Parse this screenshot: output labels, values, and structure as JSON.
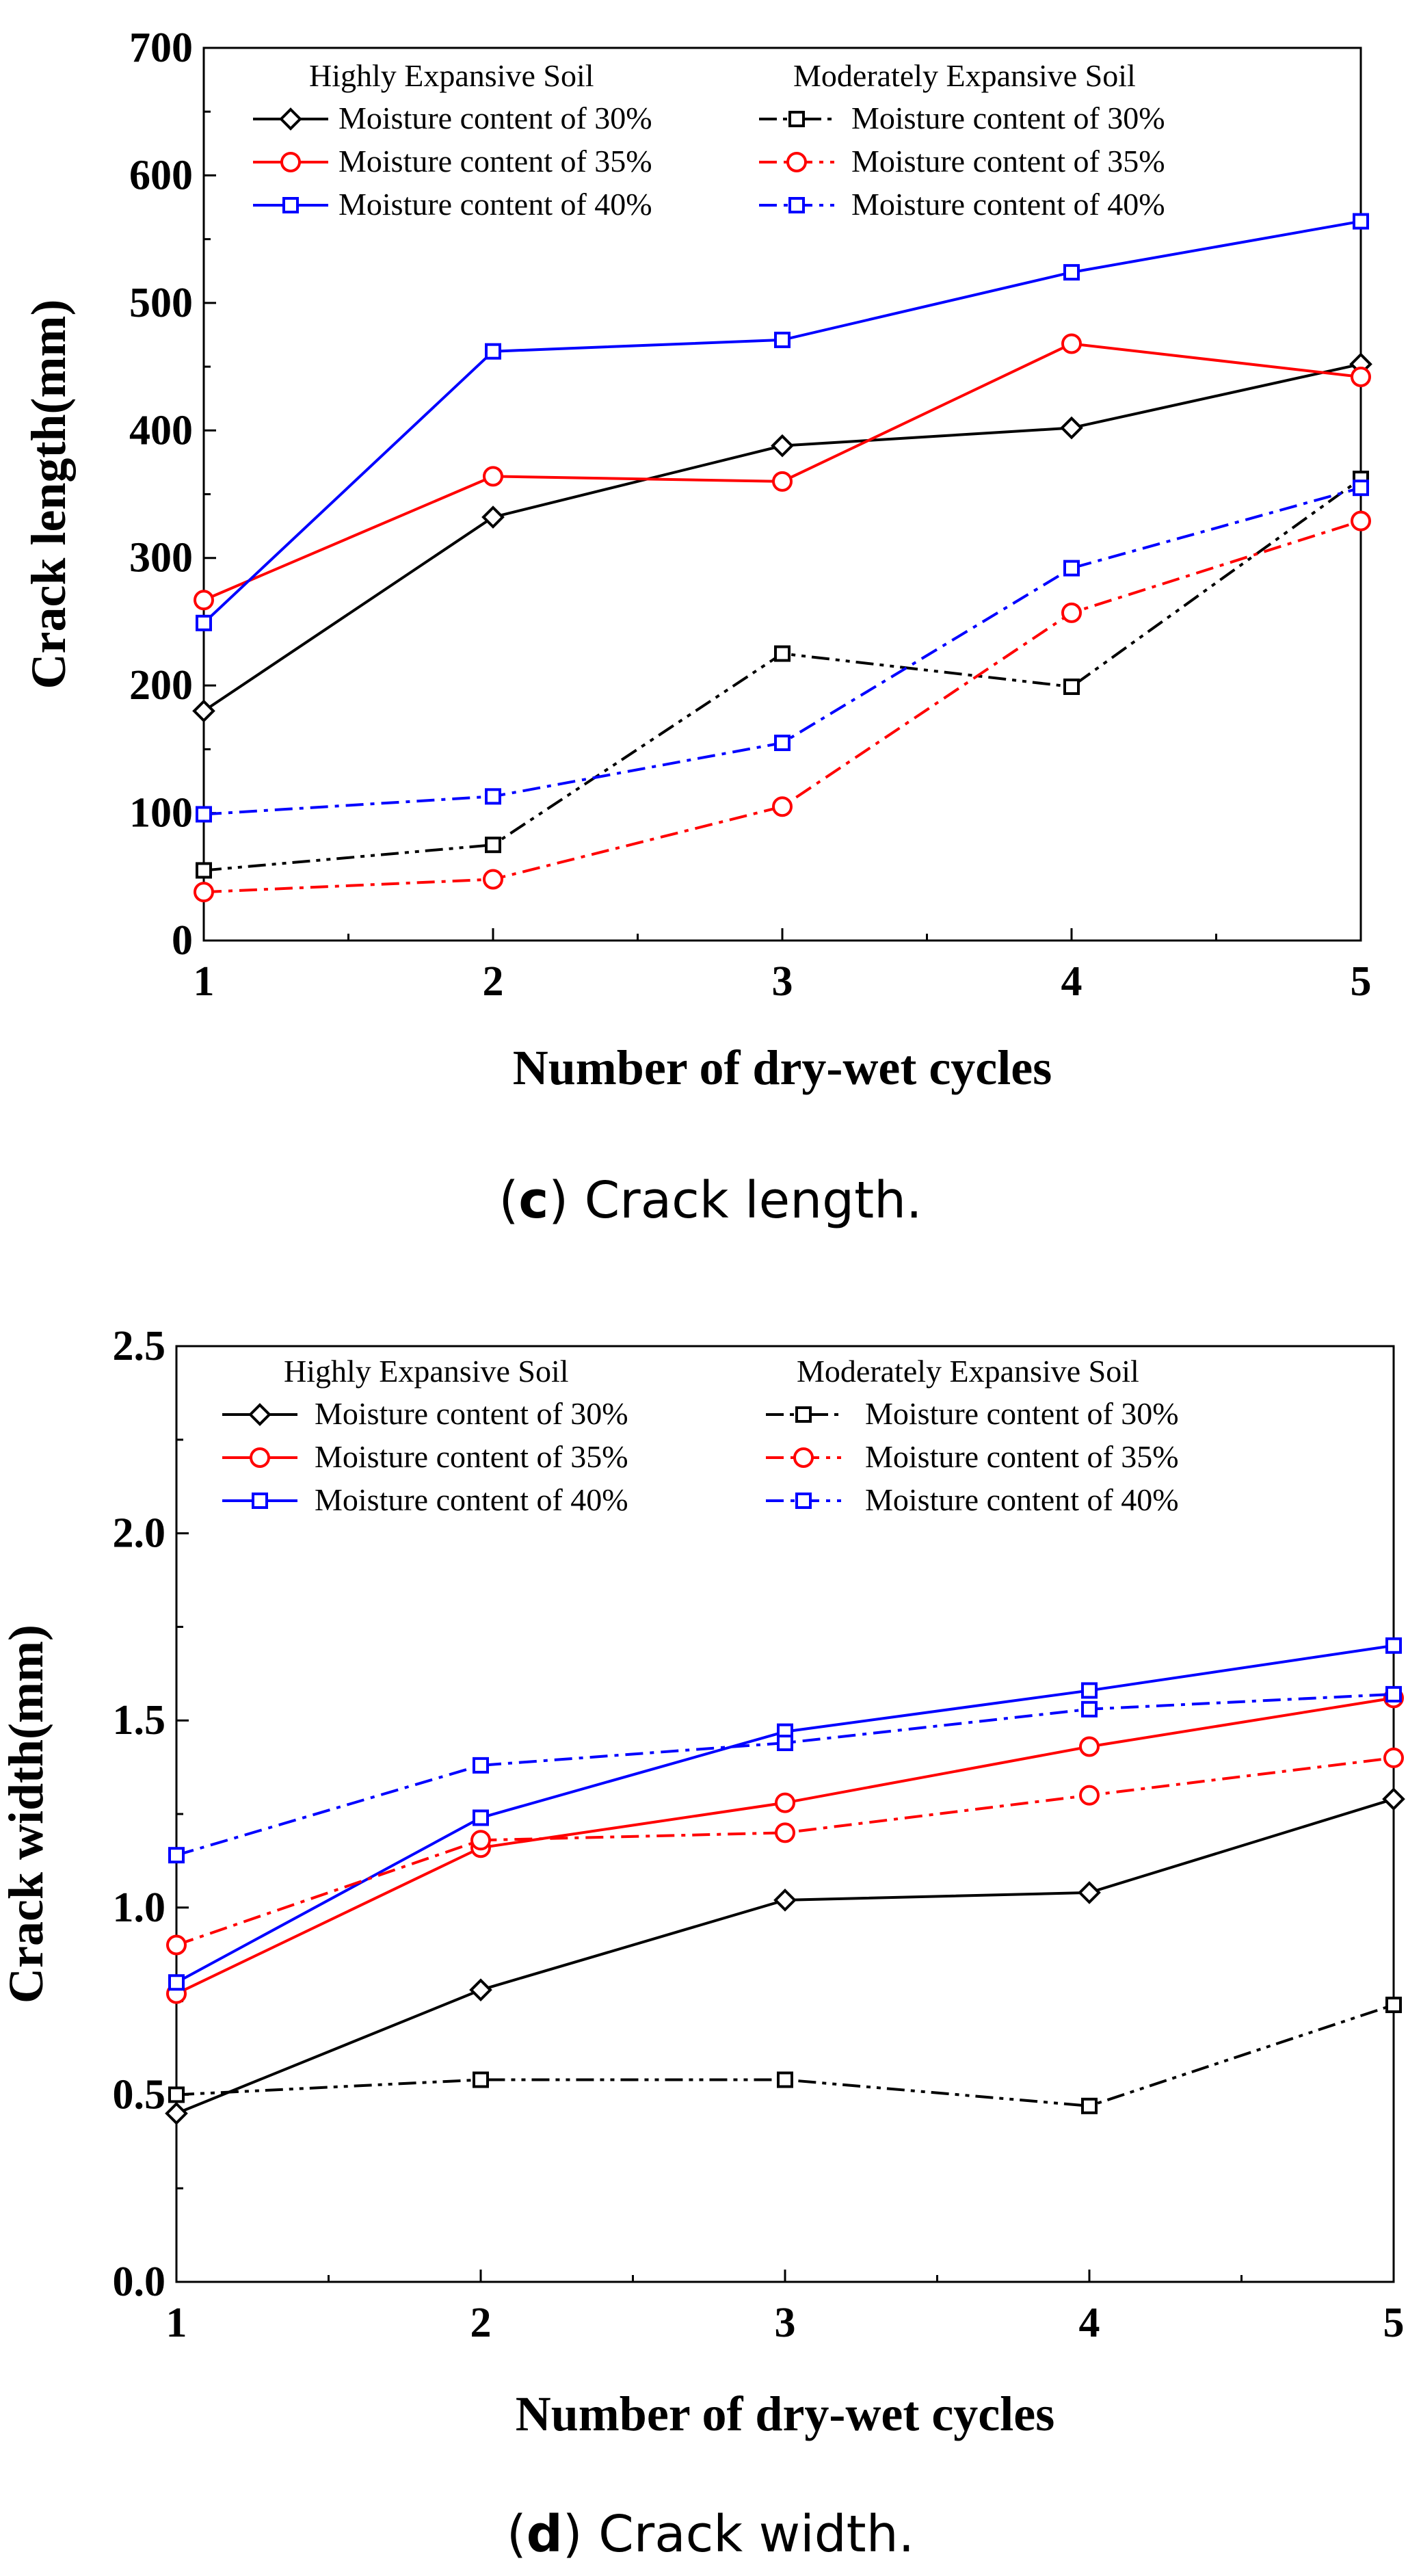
{
  "chart_data": [
    {
      "type": "line",
      "panel": "c",
      "caption_letter": "c",
      "caption_text": "Crack length.",
      "xlabel": "Number of dry-wet cycles",
      "ylabel": "Crack length(mm)",
      "x": [
        1,
        2,
        3,
        4,
        5
      ],
      "xlim": [
        1,
        5
      ],
      "ylim": [
        0,
        700
      ],
      "xticks": [
        1,
        2,
        3,
        4,
        5
      ],
      "yticks": [
        0,
        100,
        200,
        300,
        400,
        500,
        600,
        700
      ],
      "legend_groups": [
        "Highly Expansive Soil",
        "Moderately Expansive Soil"
      ],
      "series": [
        {
          "name": "Moisture content of 30%",
          "group": "Highly Expansive Soil",
          "color": "#000000",
          "marker": "diamond",
          "dash": "solid",
          "values": [
            180,
            332,
            388,
            402,
            452
          ]
        },
        {
          "name": "Moisture content of 35%",
          "group": "Highly Expansive Soil",
          "color": "#ff0000",
          "marker": "circle",
          "dash": "solid",
          "values": [
            267,
            364,
            360,
            468,
            442
          ]
        },
        {
          "name": "Moisture content of 40%",
          "group": "Highly Expansive Soil",
          "color": "#0000ff",
          "marker": "square",
          "dash": "solid",
          "values": [
            249,
            462,
            471,
            524,
            564
          ]
        },
        {
          "name": "Moisture content of 30%",
          "group": "Moderately Expansive Soil",
          "color": "#000000",
          "marker": "square",
          "dash": "dashdotdot",
          "values": [
            55,
            75,
            225,
            199,
            362
          ]
        },
        {
          "name": "Moisture content of 35%",
          "group": "Moderately Expansive Soil",
          "color": "#ff0000",
          "marker": "circle",
          "dash": "dashdot",
          "values": [
            38,
            48,
            105,
            257,
            329
          ]
        },
        {
          "name": "Moisture content of 40%",
          "group": "Moderately Expansive Soil",
          "color": "#0000ff",
          "marker": "square",
          "dash": "dashdot",
          "values": [
            99,
            113,
            155,
            292,
            355
          ]
        }
      ]
    },
    {
      "type": "line",
      "panel": "d",
      "caption_letter": "d",
      "caption_text": "Crack width.",
      "xlabel": "Number of dry-wet cycles",
      "ylabel": "Crack width(mm)",
      "x": [
        1,
        2,
        3,
        4,
        5
      ],
      "xlim": [
        1,
        5
      ],
      "ylim": [
        0.0,
        2.5
      ],
      "xticks": [
        1,
        2,
        3,
        4,
        5
      ],
      "yticks": [
        "0.0",
        "0.5",
        "1.0",
        "1.5",
        "2.0",
        "2.5"
      ],
      "legend_groups": [
        "Highly Expansive Soil",
        "Moderately Expansive Soil"
      ],
      "series": [
        {
          "name": "Moisture content of 30%",
          "group": "Highly Expansive Soil",
          "color": "#000000",
          "marker": "diamond",
          "dash": "solid",
          "values": [
            0.45,
            0.78,
            1.02,
            1.04,
            1.29
          ]
        },
        {
          "name": "Moisture content of 35%",
          "group": "Highly Expansive Soil",
          "color": "#ff0000",
          "marker": "circle",
          "dash": "solid",
          "values": [
            0.77,
            1.16,
            1.28,
            1.43,
            1.56
          ]
        },
        {
          "name": "Moisture content of 40%",
          "group": "Highly Expansive Soil",
          "color": "#0000ff",
          "marker": "square",
          "dash": "solid",
          "values": [
            0.8,
            1.24,
            1.47,
            1.58,
            1.7
          ]
        },
        {
          "name": "Moisture content of 30%",
          "group": "Moderately Expansive Soil",
          "color": "#000000",
          "marker": "square",
          "dash": "dashdotdot",
          "values": [
            0.5,
            0.54,
            0.54,
            0.47,
            0.74
          ]
        },
        {
          "name": "Moisture content of 35%",
          "group": "Moderately Expansive Soil",
          "color": "#ff0000",
          "marker": "circle",
          "dash": "dashdot",
          "values": [
            0.9,
            1.18,
            1.2,
            1.3,
            1.4
          ]
        },
        {
          "name": "Moisture content of 40%",
          "group": "Moderately Expansive Soil",
          "color": "#0000ff",
          "marker": "square",
          "dash": "dashdot",
          "values": [
            1.14,
            1.38,
            1.44,
            1.53,
            1.57
          ]
        }
      ]
    }
  ]
}
